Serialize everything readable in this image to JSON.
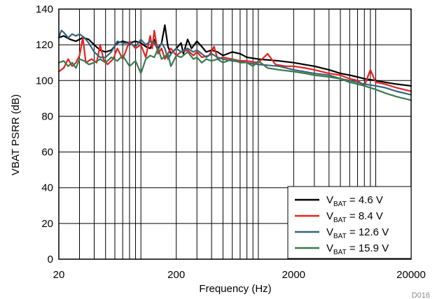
{
  "chart_data": {
    "type": "line",
    "title": "",
    "xlabel": "Frequency (Hz)",
    "ylabel": "VBAT PSRR (dB)",
    "x_scale": "log",
    "xlim": [
      20,
      20000
    ],
    "ylim": [
      0,
      140
    ],
    "x_ticks": [
      20,
      200,
      2000,
      20000
    ],
    "x_tick_labels": [
      "20",
      "200",
      "2000",
      "20000"
    ],
    "y_ticks": [
      0,
      20,
      40,
      60,
      80,
      100,
      120,
      140
    ],
    "y_tick_labels": [
      "0",
      "20",
      "40",
      "60",
      "80",
      "100",
      "120",
      "140"
    ],
    "grid": true,
    "legend_position": "bottom-right",
    "figure_code": "D016",
    "series": [
      {
        "name_main": "V",
        "name_sub": "BAT",
        "name_rest": " = 4.6 V",
        "color": "#000000",
        "points": [
          [
            20,
            124
          ],
          [
            22,
            125
          ],
          [
            25,
            123
          ],
          [
            28,
            122
          ],
          [
            32,
            124
          ],
          [
            36,
            123
          ],
          [
            40,
            120
          ],
          [
            45,
            117
          ],
          [
            50,
            116
          ],
          [
            56,
            117
          ],
          [
            63,
            121
          ],
          [
            70,
            122
          ],
          [
            80,
            121
          ],
          [
            90,
            122
          ],
          [
            100,
            121
          ],
          [
            110,
            119
          ],
          [
            120,
            118
          ],
          [
            130,
            123
          ],
          [
            140,
            118
          ],
          [
            150,
            121
          ],
          [
            160,
            131
          ],
          [
            170,
            119
          ],
          [
            180,
            115
          ],
          [
            200,
            118
          ],
          [
            220,
            121
          ],
          [
            230,
            115
          ],
          [
            250,
            123
          ],
          [
            270,
            118
          ],
          [
            300,
            122
          ],
          [
            330,
            119
          ],
          [
            360,
            116
          ],
          [
            400,
            117
          ],
          [
            450,
            116
          ],
          [
            500,
            114
          ],
          [
            600,
            116
          ],
          [
            700,
            115
          ],
          [
            800,
            113
          ],
          [
            1000,
            112
          ],
          [
            1500,
            111
          ],
          [
            2000,
            110
          ],
          [
            3000,
            108
          ],
          [
            4000,
            106
          ],
          [
            5000,
            104
          ],
          [
            6000,
            103
          ],
          [
            7000,
            102
          ],
          [
            8000,
            101
          ],
          [
            10000,
            100
          ],
          [
            12000,
            99
          ],
          [
            15000,
            98
          ],
          [
            20000,
            97
          ]
        ]
      },
      {
        "name_main": "V",
        "name_sub": "BAT",
        "name_rest": " = 8.4 V",
        "color": "#e8221e",
        "points": [
          [
            20,
            105
          ],
          [
            22,
            107
          ],
          [
            24,
            112
          ],
          [
            26,
            108
          ],
          [
            28,
            110
          ],
          [
            30,
            114
          ],
          [
            32,
            124
          ],
          [
            34,
            110
          ],
          [
            38,
            112
          ],
          [
            42,
            110
          ],
          [
            45,
            120
          ],
          [
            48,
            112
          ],
          [
            52,
            109
          ],
          [
            58,
            112
          ],
          [
            63,
            118
          ],
          [
            70,
            112
          ],
          [
            80,
            122
          ],
          [
            90,
            118
          ],
          [
            100,
            120
          ],
          [
            110,
            113
          ],
          [
            120,
            125
          ],
          [
            125,
            118
          ],
          [
            130,
            128
          ],
          [
            140,
            115
          ],
          [
            150,
            118
          ],
          [
            160,
            112
          ],
          [
            180,
            118
          ],
          [
            200,
            114
          ],
          [
            220,
            116
          ],
          [
            250,
            117
          ],
          [
            280,
            114
          ],
          [
            300,
            116
          ],
          [
            330,
            113
          ],
          [
            380,
            114
          ],
          [
            420,
            119
          ],
          [
            450,
            112
          ],
          [
            500,
            113
          ],
          [
            600,
            112
          ],
          [
            700,
            111
          ],
          [
            800,
            111
          ],
          [
            1000,
            110
          ],
          [
            1200,
            115
          ],
          [
            1400,
            109
          ],
          [
            1700,
            108
          ],
          [
            2000,
            108
          ],
          [
            2500,
            107
          ],
          [
            3000,
            106
          ],
          [
            4000,
            104
          ],
          [
            5000,
            103
          ],
          [
            6000,
            101
          ],
          [
            7000,
            100
          ],
          [
            8000,
            97
          ],
          [
            9000,
            106
          ],
          [
            10000,
            99
          ],
          [
            12000,
            98
          ],
          [
            15000,
            96
          ],
          [
            20000,
            94
          ]
        ]
      },
      {
        "name_main": "V",
        "name_sub": "BAT",
        "name_rest": " = 12.6 V",
        "color": "#37647a",
        "points": [
          [
            20,
            124
          ],
          [
            21,
            128
          ],
          [
            22,
            127
          ],
          [
            24,
            124
          ],
          [
            26,
            126
          ],
          [
            28,
            125
          ],
          [
            30,
            126
          ],
          [
            33,
            124
          ],
          [
            36,
            121
          ],
          [
            40,
            116
          ],
          [
            45,
            113
          ],
          [
            50,
            113
          ],
          [
            56,
            116
          ],
          [
            63,
            122
          ],
          [
            70,
            121
          ],
          [
            80,
            121
          ],
          [
            90,
            119
          ],
          [
            100,
            123
          ],
          [
            110,
            120
          ],
          [
            120,
            122
          ],
          [
            130,
            121
          ],
          [
            140,
            117
          ],
          [
            150,
            121
          ],
          [
            160,
            118
          ],
          [
            170,
            112
          ],
          [
            185,
            116
          ],
          [
            200,
            118
          ],
          [
            220,
            116
          ],
          [
            250,
            118
          ],
          [
            280,
            116
          ],
          [
            300,
            117
          ],
          [
            330,
            115
          ],
          [
            360,
            113
          ],
          [
            400,
            115
          ],
          [
            450,
            113
          ],
          [
            500,
            112
          ],
          [
            600,
            111
          ],
          [
            800,
            110
          ],
          [
            1000,
            109
          ],
          [
            1500,
            108
          ],
          [
            2000,
            106
          ],
          [
            3000,
            104
          ],
          [
            4000,
            103
          ],
          [
            5000,
            101
          ],
          [
            6000,
            100
          ],
          [
            7000,
            99
          ],
          [
            8000,
            98
          ],
          [
            10000,
            97
          ],
          [
            12000,
            96
          ],
          [
            15000,
            94
          ],
          [
            20000,
            92
          ]
        ]
      },
      {
        "name_main": "V",
        "name_sub": "BAT",
        "name_rest": " = 15.9 V",
        "color": "#3a7a4f",
        "points": [
          [
            20,
            110
          ],
          [
            22,
            111
          ],
          [
            24,
            108
          ],
          [
            26,
            110
          ],
          [
            28,
            107
          ],
          [
            30,
            112
          ],
          [
            33,
            111
          ],
          [
            36,
            109
          ],
          [
            40,
            110
          ],
          [
            45,
            112
          ],
          [
            50,
            110
          ],
          [
            56,
            113
          ],
          [
            63,
            111
          ],
          [
            70,
            114
          ],
          [
            80,
            108
          ],
          [
            90,
            111
          ],
          [
            100,
            104
          ],
          [
            110,
            112
          ],
          [
            120,
            114
          ],
          [
            130,
            113
          ],
          [
            140,
            118
          ],
          [
            150,
            112
          ],
          [
            170,
            115
          ],
          [
            180,
            108
          ],
          [
            200,
            114
          ],
          [
            220,
            113
          ],
          [
            250,
            116
          ],
          [
            280,
            112
          ],
          [
            300,
            113
          ],
          [
            330,
            110
          ],
          [
            360,
            112
          ],
          [
            400,
            111
          ],
          [
            450,
            112
          ],
          [
            500,
            110
          ],
          [
            600,
            112
          ],
          [
            700,
            110
          ],
          [
            800,
            110
          ],
          [
            900,
            108
          ],
          [
            1000,
            111
          ],
          [
            1200,
            107
          ],
          [
            1500,
            106
          ],
          [
            2000,
            105
          ],
          [
            2500,
            104
          ],
          [
            3000,
            103
          ],
          [
            4000,
            102
          ],
          [
            5000,
            101
          ],
          [
            6000,
            99
          ],
          [
            7000,
            98
          ],
          [
            8000,
            97
          ],
          [
            10000,
            95
          ],
          [
            12000,
            93
          ],
          [
            15000,
            91
          ],
          [
            20000,
            89
          ]
        ]
      }
    ]
  }
}
